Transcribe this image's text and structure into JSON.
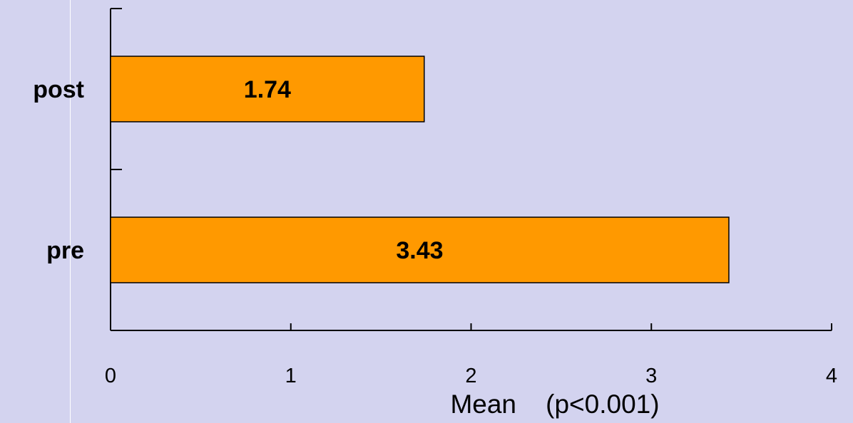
{
  "chart_data": {
    "type": "bar",
    "orientation": "horizontal",
    "categories": [
      "post",
      "pre"
    ],
    "values": [
      1.74,
      3.43
    ],
    "data_labels": [
      "1.74",
      "3.43"
    ],
    "title": "",
    "xlabel": "Mean    (p<0.001)",
    "ylabel": "",
    "xlim": [
      0,
      4
    ],
    "x_ticks": [
      "0",
      "1",
      "2",
      "3",
      "4"
    ],
    "grid": false,
    "legend": "none"
  },
  "colors": {
    "background": "#d3d3ef",
    "bar_fill": "#ff9900",
    "bar_stroke": "#000000",
    "axis": "#000000",
    "divider": "#ffffff"
  }
}
